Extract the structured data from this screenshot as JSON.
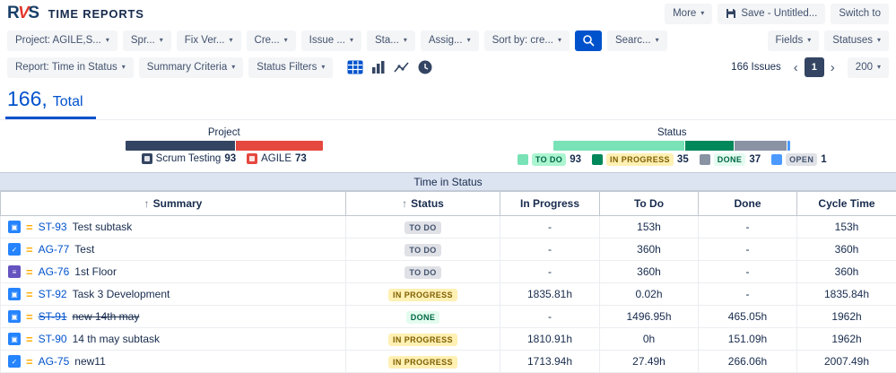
{
  "brand": {
    "logo_r": "R",
    "logo_v": "V",
    "logo_s": "S",
    "title": "TIME REPORTS"
  },
  "icons": {
    "caret": "▾",
    "prev": "‹",
    "next": "›",
    "priority": "="
  },
  "topbar": {
    "more_label": "More",
    "save_label": "Save - Untitled...",
    "switch_label": "Switch to"
  },
  "filter_bar": {
    "left_buttons": [
      "Project: AGILE,S...",
      "Spr...",
      "Fix Ver...",
      "Cre...",
      "Issue ...",
      "Sta...",
      "Assig...",
      "Sort by: cre..."
    ],
    "after_search_buttons": [
      "Searc..."
    ],
    "right_buttons": [
      "Fields",
      "Statuses"
    ]
  },
  "report_bar": {
    "buttons": [
      "Report: Time in Status",
      "Summary Criteria",
      "Status Filters"
    ],
    "issues_count": "166 Issues",
    "page": "1",
    "page_size": "200"
  },
  "totals_tab": {
    "count": "166,",
    "label": "Total"
  },
  "legend": {
    "project": {
      "title": "Project",
      "items": [
        {
          "label": "Scrum Testing",
          "count": "93",
          "color": "#344563"
        },
        {
          "label": "AGILE",
          "count": "73",
          "color": "#E5483F"
        }
      ]
    },
    "status": {
      "title": "Status",
      "items": [
        {
          "label": "TO DO",
          "count": "93",
          "color": "#79E2B6",
          "badge_bg": "#ABF5D1",
          "badge_fg": "#006644"
        },
        {
          "label": "IN PROGRESS",
          "count": "35",
          "color": "#00875A",
          "badge_bg": "#FFF0B3",
          "badge_fg": "#7F5F01"
        },
        {
          "label": "DONE",
          "count": "37",
          "color": "#8993A4",
          "badge_bg": "#E3FCEF",
          "badge_fg": "#006644"
        },
        {
          "label": "OPEN",
          "count": "1",
          "color": "#4C9AFF",
          "badge_bg": "#DFE1E6",
          "badge_fg": "#42526E"
        }
      ]
    }
  },
  "table": {
    "band_title": "Time in Status",
    "columns": [
      {
        "label": "Summary",
        "sort": "↑"
      },
      {
        "label": "Status",
        "sort": "↑"
      },
      {
        "label": "In Progress"
      },
      {
        "label": "To Do"
      },
      {
        "label": "Done"
      },
      {
        "label": "Cycle Time"
      }
    ],
    "badge_styles": {
      "TO DO": {
        "bg": "#DFE1E6",
        "fg": "#42526E"
      },
      "IN PROGRESS": {
        "bg": "#FFF0B3",
        "fg": "#7F5F01"
      },
      "DONE": {
        "bg": "#E3FCEF",
        "fg": "#006644"
      }
    },
    "rows": [
      {
        "icon_name": "subtask-icon",
        "icon_color": "#2684FF",
        "icon_glyph": "▣",
        "key": "ST-93",
        "summary": "Test subtask",
        "status": "TO DO",
        "in_progress": "-",
        "to_do": "153h",
        "done": "-",
        "cycle_time": "153h",
        "struck": false
      },
      {
        "icon_name": "task-icon",
        "icon_color": "#2684FF",
        "icon_glyph": "✓",
        "key": "AG-77",
        "summary": "Test",
        "status": "TO DO",
        "in_progress": "-",
        "to_do": "360h",
        "done": "-",
        "cycle_time": "360h",
        "struck": false
      },
      {
        "icon_name": "story-icon",
        "icon_color": "#6554C0",
        "icon_glyph": "≡",
        "key": "AG-76",
        "summary": "1st Floor",
        "status": "TO DO",
        "in_progress": "-",
        "to_do": "360h",
        "done": "-",
        "cycle_time": "360h",
        "struck": false
      },
      {
        "icon_name": "subtask-icon",
        "icon_color": "#2684FF",
        "icon_glyph": "▣",
        "key": "ST-92",
        "summary": "Task 3 Development",
        "status": "IN PROGRESS",
        "in_progress": "1835.81h",
        "to_do": "0.02h",
        "done": "-",
        "cycle_time": "1835.84h",
        "struck": false
      },
      {
        "icon_name": "subtask-icon",
        "icon_color": "#2684FF",
        "icon_glyph": "▣",
        "key": "ST-91",
        "summary": "new 14th may",
        "status": "DONE",
        "in_progress": "-",
        "to_do": "1496.95h",
        "done": "465.05h",
        "cycle_time": "1962h",
        "struck": true
      },
      {
        "icon_name": "subtask-icon",
        "icon_color": "#2684FF",
        "icon_glyph": "▣",
        "key": "ST-90",
        "summary": "14 th may subtask",
        "status": "IN PROGRESS",
        "in_progress": "1810.91h",
        "to_do": "0h",
        "done": "151.09h",
        "cycle_time": "1962h",
        "struck": false
      },
      {
        "icon_name": "task-icon",
        "icon_color": "#2684FF",
        "icon_glyph": "✓",
        "key": "AG-75",
        "summary": "new11",
        "status": "IN PROGRESS",
        "in_progress": "1713.94h",
        "to_do": "27.49h",
        "done": "266.06h",
        "cycle_time": "2007.49h",
        "struck": false
      }
    ]
  }
}
